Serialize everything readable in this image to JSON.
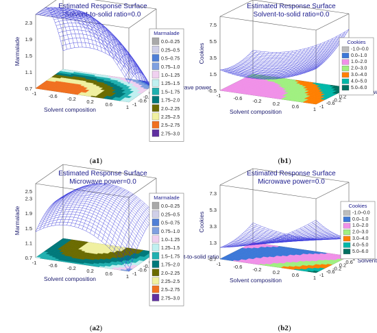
{
  "chart_data": [
    {
      "type": "surface3d",
      "panel": "a1",
      "caption_letter": "a1",
      "title": "Estimated Response Surface",
      "subtitle": "Solvent-to-solid ratio=0.0",
      "xlabel": "Solvent composition",
      "ylabel": "Microwave power",
      "zlabel": "Marmalade",
      "x_ticks": [
        "-1",
        "-0.6",
        "-0.2",
        "0.2",
        "0.6",
        "1"
      ],
      "y_ticks": [
        "-1",
        "-0.6",
        "-0.2",
        "0.2",
        "0.6",
        "1"
      ],
      "z_ticks": [
        "0.7",
        "1.1",
        "1.5",
        "1.9",
        "2.3"
      ],
      "zlim": [
        0.7,
        2.5
      ],
      "legend_title": "Marmalade",
      "legend": [
        "0.0–0.25",
        "0.25–0.5",
        "0.5–0.75",
        "0.75–1.0",
        "1.0–1.25",
        "1.25–1.5",
        "1.5–1.75",
        "1.75–2.0",
        "2.0–2.25",
        "2.25–2.5",
        "2.5–2.75",
        "2.75–3.0"
      ],
      "model": {
        "c": 2.3,
        "ax": -0.6,
        "ay": -0.6,
        "qx": -0.55,
        "qy": -0.5,
        "xy": 0.1
      }
    },
    {
      "type": "surface3d",
      "panel": "b1",
      "caption_letter": "b1",
      "title": "Estimated Response Surface",
      "subtitle": "Solvent-to-solid ratio=0.0",
      "xlabel": "Solvent composition",
      "ylabel": "Microwave power",
      "zlabel": "Cookies",
      "x_ticks": [
        "-1",
        "-0.6",
        "-0.2",
        "0.2",
        "0.6",
        "1"
      ],
      "y_ticks": [
        "-1",
        "-0.6",
        "-0.2",
        "0.2",
        "0.6",
        "1"
      ],
      "z_ticks": [
        "-0.5",
        "1.5",
        "3.5",
        "5.5",
        "7.5"
      ],
      "zlim": [
        -0.5,
        8.5
      ],
      "legend_title": "Cookies",
      "legend": [
        "-1.0–0.0",
        "0.0–1.0",
        "1.0–2.0",
        "2.0–3.0",
        "3.0–4.0",
        "4.0–5.0",
        "5.0–6.0"
      ],
      "model": {
        "c": 2.0,
        "ax": 1.5,
        "ay": 0.8,
        "qx": 1.2,
        "qy": 0.5,
        "xy": 0.6
      }
    },
    {
      "type": "surface3d",
      "panel": "a2",
      "caption_letter": "a2",
      "title": "Estimated Response Surface",
      "subtitle": "Microwave power=0.0",
      "xlabel": "Solvent composition",
      "ylabel": "Solvent-to-solid ratio",
      "zlabel": "Marmalade",
      "x_ticks": [
        "-1",
        "-0.6",
        "-0.2",
        "0.2",
        "0.6",
        "1"
      ],
      "y_ticks": [
        "-1",
        "-0.6",
        "-0.2",
        "0.2",
        "0.6",
        "1"
      ],
      "z_ticks": [
        "0.7",
        "1.1",
        "1.5",
        "1.9",
        "2.3",
        "2.5"
      ],
      "zlim": [
        0.7,
        2.7
      ],
      "legend_title": "Marmalade",
      "legend": [
        "0.0–0.25",
        "0.25–0.5",
        "0.5–0.75",
        "0.75–1.0",
        "1.0–1.25",
        "1.25–1.5",
        "1.5–1.75",
        "1.75–2.0",
        "2.0–2.25",
        "2.25–2.5",
        "2.5–2.75",
        "2.75–3.0"
      ],
      "model": {
        "c": 2.2,
        "ax": -0.2,
        "ay": 0.35,
        "qx": -0.6,
        "qy": -0.2,
        "xy": 0.15
      }
    },
    {
      "type": "surface3d",
      "panel": "b2",
      "caption_letter": "b2",
      "title": "Estimated Response Surface",
      "subtitle": "Microwave power=0.0",
      "xlabel": "Solvent composition",
      "ylabel": "Solvent-to-solid ratio",
      "zlabel": "Cookies",
      "x_ticks": [
        "-1",
        "-0.6",
        "-0.2",
        "0.2",
        "0.6",
        "1"
      ],
      "y_ticks": [
        "-1",
        "-0.6",
        "-0.2",
        "0.2",
        "0.6",
        "1"
      ],
      "z_ticks": [
        "-0.7",
        "1.3",
        "3.3",
        "5.3",
        "7.3"
      ],
      "zlim": [
        -0.7,
        8.3
      ],
      "legend_title": "Cookies",
      "legend": [
        "-1.0–0.0",
        "0.0–1.0",
        "1.0–2.0",
        "2.0–3.0",
        "3.0–4.0",
        "4.0–5.0",
        "5.0–6.0"
      ],
      "model": {
        "c": 1.2,
        "ax": 1.2,
        "ay": -0.8,
        "qx": 0.8,
        "qy": 0.4,
        "xy": -1.3
      }
    }
  ],
  "colors": {
    "mesh": "#2a2ad8",
    "box": "#555555",
    "title": "#1a1a8c",
    "marmalade_bands": [
      "#a9a9a9",
      "#cfcfe8",
      "#4f7fd6",
      "#7fa0e0",
      "#f0d0f0",
      "#bff0f0",
      "#20b0b0",
      "#00787a",
      "#6b6b00",
      "#f0f0a0",
      "#f07020",
      "#6030a0"
    ],
    "cookies_bands": [
      "#bdbdbd",
      "#3c78d8",
      "#f090e8",
      "#a0f080",
      "#ff7f00",
      "#00b8a8",
      "#007060"
    ]
  }
}
